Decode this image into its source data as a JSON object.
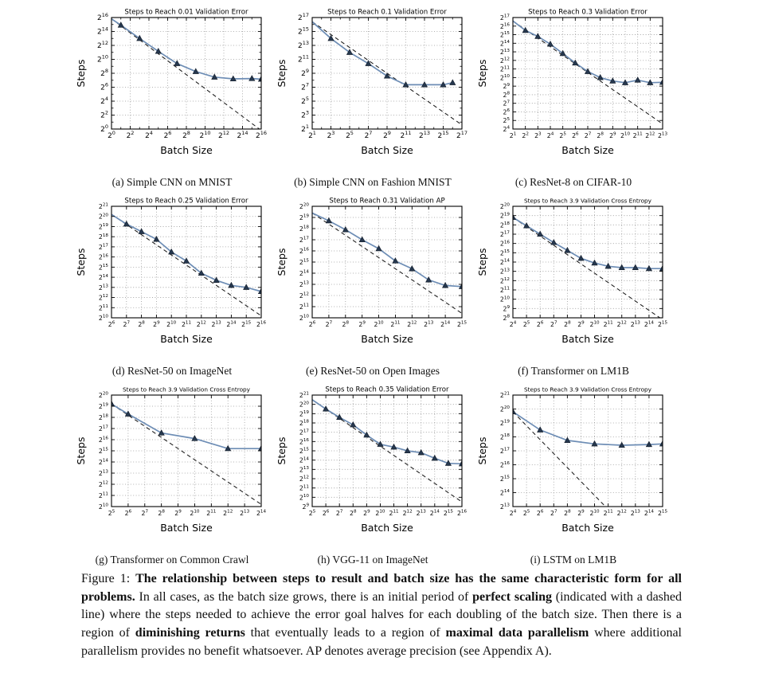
{
  "colors": {
    "curve": "#6d8db5",
    "marker_fill": "#26384f",
    "marker_stroke": "#16202e",
    "dash_line": "#1a1a1a",
    "grid_line": "#999999",
    "axis": "#000000"
  },
  "axis_note": "x and y values are base-2 exponents read from the log-log axes (value = 2^n)",
  "chart_data": [
    {
      "id": "a",
      "type": "line",
      "title": "Steps to Reach 0.01 Validation Error",
      "title_small": false,
      "caption": "(a) Simple CNN on MNIST",
      "xlabel": "Batch Size",
      "ylabel": "Steps",
      "xlim": [
        0,
        16
      ],
      "ylim": [
        0,
        16
      ],
      "x_tick_step": 2,
      "y_tick_step": 2,
      "minor_ticks": true,
      "grid": true,
      "x": [
        0,
        1,
        3,
        5,
        7,
        9,
        11,
        13,
        15,
        16
      ],
      "y": [
        15.8,
        14.9,
        13.0,
        11.15,
        9.4,
        8.25,
        7.45,
        7.2,
        7.25,
        7.15
      ],
      "marker_start": 1,
      "dash": [
        [
          0,
          15.8
        ],
        [
          16,
          -0.2
        ]
      ]
    },
    {
      "id": "b",
      "type": "line",
      "title": "Steps to Reach 0.1 Validation Error",
      "title_small": false,
      "caption": "(b) Simple CNN on Fashion MNIST",
      "xlabel": "Batch Size",
      "ylabel": "Steps",
      "xlim": [
        1,
        17
      ],
      "ylim": [
        1,
        17
      ],
      "x_tick_step": 2,
      "y_tick_step": 2,
      "minor_ticks": true,
      "grid": true,
      "x": [
        1,
        3,
        5,
        7,
        9,
        11,
        13,
        15,
        16
      ],
      "y": [
        16.4,
        14.0,
        12.0,
        10.4,
        8.6,
        7.35,
        7.35,
        7.35,
        7.65
      ],
      "marker_start": 1,
      "dash": [
        [
          1,
          16.4
        ],
        [
          17,
          1.6
        ]
      ]
    },
    {
      "id": "c",
      "type": "line",
      "title": "Steps to Reach 0.3 Validation Error",
      "title_small": false,
      "caption": "(c) ResNet-8 on CIFAR-10",
      "xlabel": "Batch Size",
      "ylabel": "Steps",
      "xlim": [
        1,
        13
      ],
      "ylim": [
        4,
        17
      ],
      "x_tick_step": 1,
      "y_tick_step": 1,
      "minor_ticks": false,
      "grid": true,
      "x": [
        1,
        2,
        3,
        4,
        5,
        6,
        7,
        8,
        9,
        10,
        11,
        12,
        13
      ],
      "y": [
        16.6,
        15.5,
        14.8,
        13.9,
        12.8,
        11.7,
        10.7,
        10.0,
        9.6,
        9.4,
        9.7,
        9.4,
        9.45
      ],
      "marker_start": 1,
      "dash": [
        [
          1,
          16.6
        ],
        [
          13,
          4.6
        ]
      ]
    },
    {
      "id": "d",
      "type": "line",
      "title": "Steps to Reach 0.25 Validation Error",
      "title_small": false,
      "caption": "(d) ResNet-50 on ImageNet",
      "xlabel": "Batch Size",
      "ylabel": "Steps",
      "xlim": [
        6,
        16
      ],
      "ylim": [
        10,
        21
      ],
      "x_tick_step": 1,
      "y_tick_step": 1,
      "minor_ticks": false,
      "grid": true,
      "x": [
        6,
        7,
        8,
        9,
        10,
        11,
        12,
        13,
        14,
        15,
        16
      ],
      "y": [
        20.2,
        19.25,
        18.5,
        17.75,
        16.5,
        15.6,
        14.4,
        13.7,
        13.2,
        13.0,
        12.6
      ],
      "marker_start": 1,
      "dash": [
        [
          6,
          20.2
        ],
        [
          16,
          10.2
        ]
      ]
    },
    {
      "id": "e",
      "type": "line",
      "title": "Steps to Reach 0.31 Validation AP",
      "title_small": false,
      "caption": "(e) ResNet-50 on Open Images",
      "xlabel": "Batch Size",
      "ylabel": "Steps",
      "xlim": [
        6,
        15
      ],
      "ylim": [
        10,
        20
      ],
      "x_tick_step": 1,
      "y_tick_step": 1,
      "minor_ticks": false,
      "grid": true,
      "x": [
        6,
        7,
        8,
        9,
        10,
        11,
        12,
        13,
        14,
        15
      ],
      "y": [
        19.4,
        18.7,
        17.9,
        17.0,
        16.2,
        15.1,
        14.4,
        13.4,
        12.9,
        12.8
      ],
      "marker_start": 1,
      "dash": [
        [
          6,
          19.4
        ],
        [
          15,
          10.4
        ]
      ]
    },
    {
      "id": "f",
      "type": "line",
      "title": "Steps to Reach 3.9 Validation Cross Entropy",
      "title_small": true,
      "caption": "(f) Transformer on LM1B",
      "xlabel": "Batch Size",
      "ylabel": "Steps",
      "xlim": [
        4,
        15
      ],
      "ylim": [
        8,
        20
      ],
      "x_tick_step": 1,
      "y_tick_step": 1,
      "minor_ticks": false,
      "grid": true,
      "x": [
        4,
        5,
        6,
        7,
        8,
        9,
        10,
        11,
        12,
        13,
        14,
        15
      ],
      "y": [
        18.8,
        17.9,
        17.0,
        16.1,
        15.25,
        14.4,
        13.9,
        13.55,
        13.4,
        13.4,
        13.3,
        13.3
      ],
      "marker_start": 0,
      "dash": [
        [
          4,
          18.8
        ],
        [
          15,
          7.8
        ]
      ]
    },
    {
      "id": "g",
      "type": "line",
      "title": "Steps to Reach 3.9 Validation Cross Entropy",
      "title_small": true,
      "caption": "(g) Transformer on Common Crawl",
      "xlabel": "Batch Size",
      "ylabel": "Steps",
      "xlim": [
        5,
        14
      ],
      "ylim": [
        10,
        20
      ],
      "x_tick_step": 1,
      "y_tick_step": 1,
      "minor_ticks": false,
      "grid": true,
      "x": [
        5,
        6,
        8,
        10,
        12,
        14
      ],
      "y": [
        19.2,
        18.3,
        16.6,
        16.1,
        15.2,
        15.2
      ],
      "marker_start": 0,
      "dash": [
        [
          5,
          19.2
        ],
        [
          14,
          10.2
        ]
      ]
    },
    {
      "id": "h",
      "type": "line",
      "title": "Steps to Reach 0.35 Validation Error",
      "title_small": false,
      "caption": "(h) VGG-11 on ImageNet",
      "xlabel": "Batch Size",
      "ylabel": "Steps",
      "xlim": [
        5,
        16
      ],
      "ylim": [
        9,
        21
      ],
      "x_tick_step": 1,
      "y_tick_step": 1,
      "minor_ticks": false,
      "grid": true,
      "x": [
        5,
        6,
        7,
        8,
        9,
        10,
        11,
        12,
        13,
        14,
        15,
        16
      ],
      "y": [
        20.5,
        19.5,
        18.6,
        17.8,
        16.7,
        15.7,
        15.4,
        15.0,
        14.8,
        14.2,
        13.65,
        13.6
      ],
      "marker_start": 1,
      "dash": [
        [
          5,
          20.5
        ],
        [
          16,
          9.5
        ]
      ]
    },
    {
      "id": "i",
      "type": "line",
      "title": "Steps to Reach 3.9 Validation Cross Entropy",
      "title_small": true,
      "caption": "(i) LSTM on LM1B",
      "xlabel": "Batch Size",
      "ylabel": "Steps",
      "xlim": [
        4,
        15
      ],
      "ylim": [
        13,
        21
      ],
      "x_tick_step": 1,
      "y_tick_step": 1,
      "minor_ticks": false,
      "grid": true,
      "x": [
        4,
        6,
        8,
        10,
        12,
        14,
        15
      ],
      "y": [
        19.8,
        18.5,
        17.75,
        17.5,
        17.4,
        17.45,
        17.5
      ],
      "marker_start": 0,
      "dash": [
        [
          4,
          19.8
        ],
        [
          15,
          8.8
        ]
      ]
    }
  ],
  "figure": {
    "caption_segments": [
      {
        "text": "Figure 1: ",
        "bold": false
      },
      {
        "text": "The relationship between steps to result and batch size has the same characteristic form for all problems.",
        "bold": true
      },
      {
        "text": " In all cases, as the batch size grows, there is an initial period of ",
        "bold": false
      },
      {
        "text": "perfect scaling",
        "bold": true
      },
      {
        "text": " (indicated with a dashed line) where the steps needed to achieve the error goal halves for each doubling of the batch size. Then there is a region of ",
        "bold": false
      },
      {
        "text": "diminishing returns",
        "bold": true
      },
      {
        "text": " that eventually leads to a region of ",
        "bold": false
      },
      {
        "text": "maximal data parallelism",
        "bold": true
      },
      {
        "text": " where additional parallelism provides no benefit whatsoever. AP denotes average precision (see Appendix A).",
        "bold": false
      }
    ]
  }
}
